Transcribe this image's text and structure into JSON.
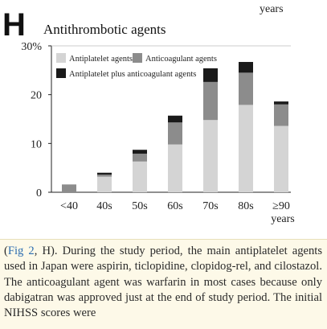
{
  "panel_letter": "H",
  "top_fragment": "years",
  "chart_data": {
    "type": "bar",
    "stacked": true,
    "title": "Antithrombotic agents",
    "categories": [
      "<40",
      "40s",
      "50s",
      "60s",
      "70s",
      "80s",
      "≥90"
    ],
    "category_second_line": [
      "",
      "",
      "",
      "",
      "",
      "",
      "years"
    ],
    "y_ticks": [
      "0",
      "10",
      "20",
      "30%"
    ],
    "ylim": [
      0,
      30
    ],
    "grid": false,
    "legend_placement": "top-center",
    "series": [
      {
        "name": "Antiplatelet agents",
        "color": "#d4d4d4",
        "values": [
          0.0,
          3.2,
          6.3,
          9.8,
          14.8,
          17.9,
          13.6
        ]
      },
      {
        "name": "Anticoagulant agents",
        "color": "#8c8c8c",
        "values": [
          1.6,
          0.4,
          1.6,
          4.5,
          7.8,
          6.6,
          4.4
        ]
      },
      {
        "name": "Antiplatelet plus anticoagulant agents",
        "color": "#1a1a1a",
        "values": [
          0.0,
          0.4,
          0.8,
          1.4,
          2.8,
          2.2,
          0.6
        ]
      }
    ]
  },
  "caption": {
    "open_paren": "(",
    "fig_ref": "Fig 2",
    "text": ", H). During the study period, the main antiplatelet agents used in Japan were aspirin, ticlopidine, clopidog-rel, and cilostazol. The anticoagulant agent was warfarin in most cases because only dabigatran was approved just at the end of study period. The initial NIHSS scores were"
  }
}
